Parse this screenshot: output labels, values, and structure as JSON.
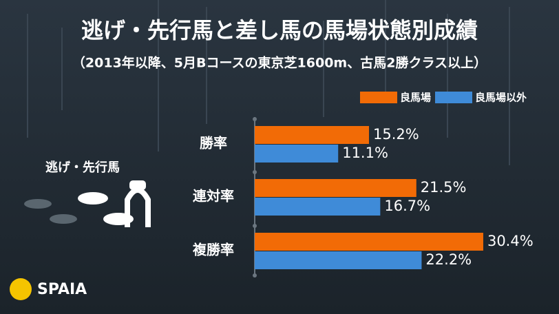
{
  "chart_data": {
    "type": "bar",
    "orientation": "horizontal",
    "title": "逃げ・先行馬と差し馬の馬場状態別成績",
    "subtitle": "（2013年以降、5月Bコースの東京芝1600m、古馬2勝クラス以上）",
    "categories": [
      "勝率",
      "連対率",
      "複勝率"
    ],
    "series": [
      {
        "name": "良馬場",
        "color": "#f26b06",
        "values": [
          15.2,
          21.5,
          30.4
        ],
        "value_labels": [
          "15.2%",
          "21.5%",
          "30.4%"
        ]
      },
      {
        "name": "良馬場以外",
        "color": "#3f8bd8",
        "values": [
          11.1,
          16.7,
          22.2
        ],
        "value_labels": [
          "11.1%",
          "16.7%",
          "22.2%"
        ]
      }
    ]
  },
  "side_label": "逃げ・先行馬",
  "logo": "SPAIA"
}
